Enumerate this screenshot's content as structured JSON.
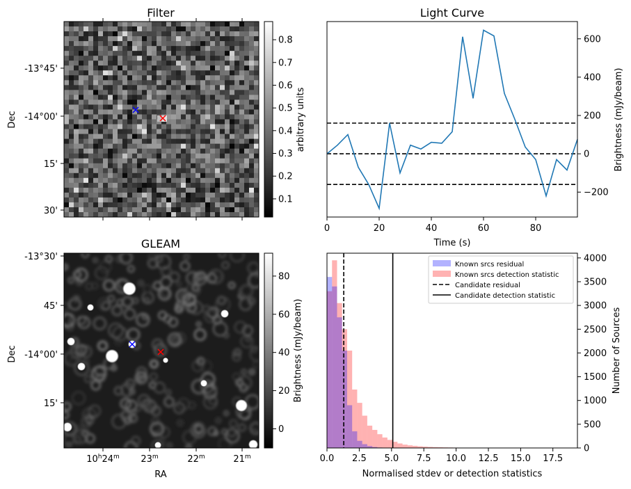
{
  "filter_panel": {
    "title": "Filter",
    "ylabel": "Dec",
    "ytick_labels": [
      "-13°45'",
      "-14°00'",
      "15'",
      "30'"
    ],
    "colorbar": {
      "label": "arbitrary units",
      "tick_labels": [
        "0.1",
        "0.2",
        "0.3",
        "0.4",
        "0.5",
        "0.6",
        "0.7",
        "0.8"
      ],
      "tick_values": [
        0.1,
        0.2,
        0.3,
        0.4,
        0.5,
        0.6,
        0.7,
        0.8
      ],
      "range": [
        0.02,
        0.88
      ]
    },
    "markers": [
      {
        "name": "blue-marker",
        "color": "#0000ff",
        "symbol": "x"
      },
      {
        "name": "red-marker",
        "color": "#ff0000",
        "symbol": "x"
      }
    ]
  },
  "gleam_panel": {
    "title": "GLEAM",
    "ylabel": "Dec",
    "xlabel": "RA",
    "ytick_labels": [
      "-13°30'",
      "45'",
      "-14°00'",
      "15'"
    ],
    "xtick_labels": [
      {
        "main": "10",
        "sup1": "h",
        "mid": "24",
        "sup2": "m"
      },
      {
        "main": "23",
        "sup2": "m"
      },
      {
        "main": "22",
        "sup2": "m"
      },
      {
        "main": "21",
        "sup2": "m"
      }
    ],
    "colorbar": {
      "label": "Brightness (mJy/beam)",
      "tick_labels": [
        "0",
        "20",
        "40",
        "60",
        "80"
      ],
      "tick_values": [
        0,
        20,
        40,
        60,
        80
      ],
      "range": [
        -10,
        92
      ]
    }
  },
  "chart_data": [
    {
      "type": "line",
      "title": "Light Curve",
      "xlabel": "Time (s)",
      "ylabel": "Brightness (mJy/beam)",
      "xlim": [
        0,
        96
      ],
      "ylim": [
        -330,
        690
      ],
      "xticks": [
        0,
        20,
        40,
        60,
        80
      ],
      "yticks": [
        -200,
        0,
        200,
        400,
        600
      ],
      "line_color": "#1f77b4",
      "x": [
        0,
        4,
        8,
        12,
        16,
        20,
        24,
        28,
        32,
        36,
        40,
        44,
        48,
        52,
        56,
        60,
        64,
        68,
        72,
        76,
        80,
        84,
        88,
        92,
        96
      ],
      "y": [
        0,
        45,
        100,
        -70,
        -160,
        -285,
        160,
        -100,
        45,
        25,
        60,
        55,
        115,
        610,
        290,
        645,
        615,
        315,
        180,
        35,
        -30,
        -220,
        -30,
        -85,
        75
      ],
      "hlines": [
        {
          "y": 160,
          "style": "dashed",
          "color": "#000000"
        },
        {
          "y": 0,
          "style": "dashed",
          "color": "#000000"
        },
        {
          "y": -160,
          "style": "dashed",
          "color": "#000000"
        }
      ]
    },
    {
      "type": "bar",
      "subtype": "histogram",
      "xlabel": "Normalised stdev or detection statistics",
      "ylabel": "Number of Sources",
      "xlim": [
        0,
        19.4
      ],
      "ylim": [
        0,
        4100
      ],
      "xticks": [
        0.0,
        2.5,
        5.0,
        7.5,
        10.0,
        12.5,
        15.0,
        17.5
      ],
      "xtick_labels": [
        "0.0",
        "2.5",
        "5.0",
        "7.5",
        "10.0",
        "12.5",
        "15.0",
        "17.5"
      ],
      "yticks": [
        0,
        500,
        1000,
        1500,
        2000,
        2500,
        3000,
        3500,
        4000
      ],
      "bin_width": 0.39,
      "legend_position": "top-right",
      "series": [
        {
          "name": "Known srcs residual",
          "color": "#0000ff",
          "alpha": 0.3,
          "values": [
            3600,
            3400,
            2750,
            2050,
            900,
            350,
            150,
            80,
            40,
            20,
            10,
            5
          ]
        },
        {
          "name": "Known srcs detection statistic",
          "color": "#ff0000",
          "alpha": 0.3,
          "values": [
            3300,
            3950,
            3050,
            2500,
            2050,
            1230,
            950,
            680,
            470,
            380,
            290,
            220,
            170,
            130,
            95,
            70,
            55,
            45,
            35,
            28,
            22,
            18,
            15,
            12,
            10,
            8,
            7,
            6,
            5,
            4,
            4,
            3,
            3,
            3,
            2,
            2,
            2,
            2,
            1,
            1,
            1,
            1,
            1,
            1,
            1,
            1,
            1,
            1,
            1,
            1
          ]
        }
      ],
      "vlines": [
        {
          "name": "Candidate residual",
          "x": 1.3,
          "style": "dashed",
          "color": "#000000"
        },
        {
          "name": "Candidate detection statistic",
          "x": 5.1,
          "style": "solid",
          "color": "#000000"
        }
      ]
    }
  ]
}
